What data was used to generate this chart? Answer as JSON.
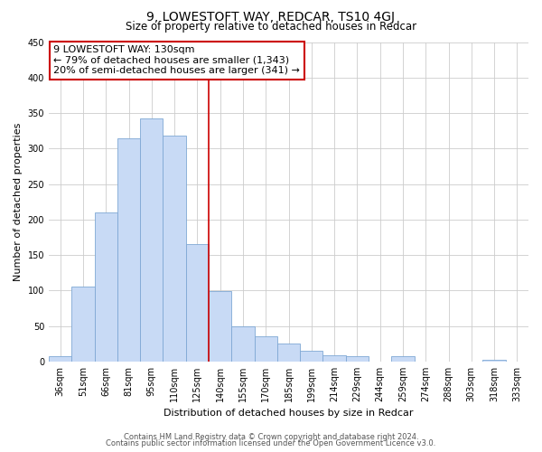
{
  "title": "9, LOWESTOFT WAY, REDCAR, TS10 4GJ",
  "subtitle": "Size of property relative to detached houses in Redcar",
  "xlabel": "Distribution of detached houses by size in Redcar",
  "ylabel": "Number of detached properties",
  "bar_labels": [
    "36sqm",
    "51sqm",
    "66sqm",
    "81sqm",
    "95sqm",
    "110sqm",
    "125sqm",
    "140sqm",
    "155sqm",
    "170sqm",
    "185sqm",
    "199sqm",
    "214sqm",
    "229sqm",
    "244sqm",
    "259sqm",
    "274sqm",
    "288sqm",
    "303sqm",
    "318sqm",
    "333sqm"
  ],
  "bar_values": [
    7,
    106,
    210,
    315,
    343,
    318,
    165,
    99,
    50,
    35,
    25,
    15,
    9,
    8,
    0,
    7,
    0,
    0,
    0,
    2,
    0
  ],
  "bar_color": "#c8daf5",
  "bar_edge_color": "#7fa8d4",
  "vline_x_index": 6.5,
  "vline_color": "#cc0000",
  "annotation_title": "9 LOWESTOFT WAY: 130sqm",
  "annotation_line1": "← 79% of detached houses are smaller (1,343)",
  "annotation_line2": "20% of semi-detached houses are larger (341) →",
  "annotation_box_facecolor": "#ffffff",
  "annotation_box_edgecolor": "#cc0000",
  "ylim": [
    0,
    450
  ],
  "yticks": [
    0,
    50,
    100,
    150,
    200,
    250,
    300,
    350,
    400,
    450
  ],
  "footer1": "Contains HM Land Registry data © Crown copyright and database right 2024.",
  "footer2": "Contains public sector information licensed under the Open Government Licence v3.0.",
  "bg_color": "#ffffff",
  "grid_color": "#cccccc",
  "title_fontsize": 10,
  "subtitle_fontsize": 8.5,
  "ylabel_fontsize": 8,
  "xlabel_fontsize": 8,
  "tick_fontsize": 7,
  "annotation_fontsize": 8,
  "footer_fontsize": 6
}
